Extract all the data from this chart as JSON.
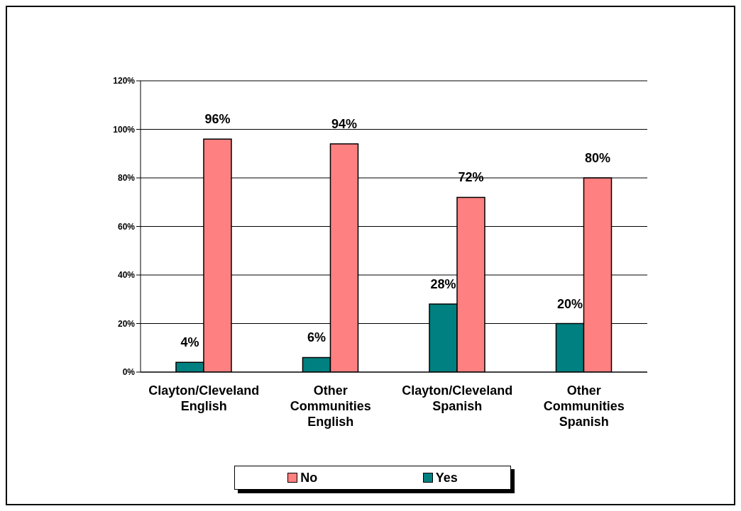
{
  "chart_data": {
    "type": "bar",
    "categories": [
      "Clayton/Cleveland English",
      "Other Communities English",
      "Clayton/Cleveland Spanish",
      "Other Communities Spanish"
    ],
    "series": [
      {
        "name": "Yes",
        "color": "#008080",
        "values": [
          4,
          6,
          28,
          20
        ],
        "value_labels": [
          "4%",
          "6%",
          "28%",
          "20%"
        ]
      },
      {
        "name": "No",
        "color": "#ff8080",
        "values": [
          96,
          94,
          72,
          80
        ],
        "value_labels": [
          "96%",
          "94%",
          "72%",
          "80%"
        ]
      }
    ],
    "ylim": [
      0,
      120
    ],
    "yticks": [
      {
        "value": 0,
        "label": "0%"
      },
      {
        "value": 20,
        "label": "20%"
      },
      {
        "value": 40,
        "label": "40%"
      },
      {
        "value": 60,
        "label": "60%"
      },
      {
        "value": 80,
        "label": "80%"
      },
      {
        "value": 100,
        "label": "100%"
      },
      {
        "value": 120,
        "label": "120%"
      }
    ],
    "grid": "y",
    "legend": "bottom"
  }
}
